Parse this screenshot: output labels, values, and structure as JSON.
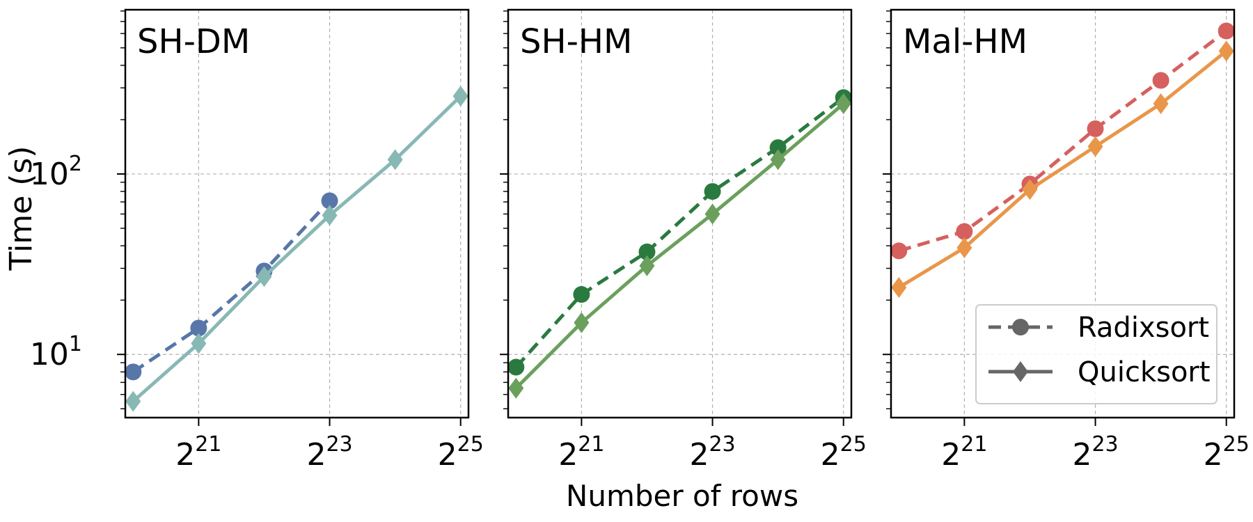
{
  "figure": {
    "xlabel": "Number of rows",
    "ylabel": "Time (s)"
  },
  "legend": {
    "radix_label": "Radixsort",
    "quick_label": "Quicksort",
    "placement": "lower-right of third panel"
  },
  "ticks": {
    "x": [
      {
        "base": "2",
        "exp": "21"
      },
      {
        "base": "2",
        "exp": "23"
      },
      {
        "base": "2",
        "exp": "25"
      }
    ],
    "y": [
      {
        "base": "10",
        "exp": "1"
      },
      {
        "base": "10",
        "exp": "2"
      }
    ]
  },
  "chart_data": [
    {
      "type": "line",
      "title": "SH-DM",
      "xlabel": "",
      "ylabel": "Time (s)",
      "xscale": "log2",
      "yscale": "log10",
      "grid": true,
      "series": [
        {
          "name": "Radixsort",
          "style": "dashed",
          "marker": "circle",
          "color": "#5876a8",
          "x": [
            20,
            21,
            22,
            23
          ],
          "values": [
            8.0,
            14.0,
            29.0,
            71.0
          ]
        },
        {
          "name": "Quicksort",
          "style": "solid",
          "marker": "diamond",
          "color": "#88b8b4",
          "x": [
            20,
            21,
            22,
            23,
            24,
            25
          ],
          "values": [
            5.5,
            11.5,
            27.0,
            59.0,
            120.0,
            270.0
          ]
        }
      ]
    },
    {
      "type": "line",
      "title": "SH-HM",
      "xlabel": "Number of rows",
      "ylabel": "",
      "xscale": "log2",
      "yscale": "log10",
      "grid": true,
      "series": [
        {
          "name": "Radixsort",
          "style": "dashed",
          "marker": "circle",
          "color": "#2a7a3f",
          "x": [
            20,
            21,
            22,
            23,
            24,
            25
          ],
          "values": [
            8.5,
            21.5,
            37.0,
            80.0,
            140.0,
            265.0
          ]
        },
        {
          "name": "Quicksort",
          "style": "solid",
          "marker": "diamond",
          "color": "#6aa05c",
          "x": [
            20,
            21,
            22,
            23,
            24,
            25
          ],
          "values": [
            6.5,
            15.0,
            31.0,
            60.0,
            120.0,
            245.0
          ]
        }
      ]
    },
    {
      "type": "line",
      "title": "Mal-HM",
      "xlabel": "",
      "ylabel": "",
      "xscale": "log2",
      "yscale": "log10",
      "grid": true,
      "series": [
        {
          "name": "Radixsort",
          "style": "dashed",
          "marker": "circle",
          "color": "#d5605e",
          "x": [
            20,
            21,
            22,
            23,
            24,
            25
          ],
          "values": [
            37.5,
            48.0,
            88.0,
            178.0,
            330.0,
            620.0
          ]
        },
        {
          "name": "Quicksort",
          "style": "solid",
          "marker": "diamond",
          "color": "#e9964a",
          "x": [
            20,
            21,
            22,
            23,
            24,
            25
          ],
          "values": [
            23.5,
            39.0,
            82.0,
            142.0,
            245.0,
            480.0
          ]
        }
      ]
    }
  ],
  "axes": {
    "x_log2_range": [
      19.88,
      25.12
    ],
    "y_log10_range": [
      0.65,
      2.91
    ]
  }
}
